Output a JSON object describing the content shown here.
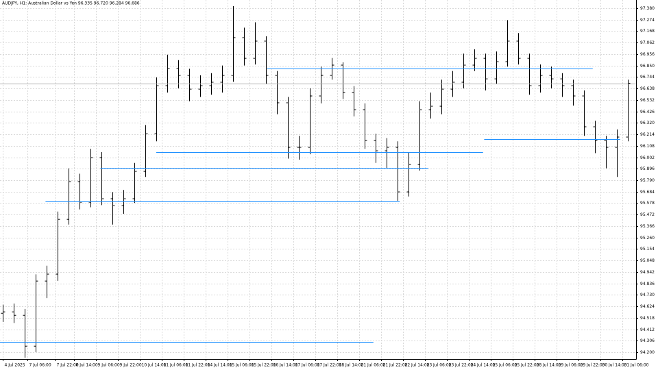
{
  "chart_data": {
    "type": "ohlc",
    "title": "AUDJPY, H1: Australian Dollar vs Yen  96.335 96.720 96.284 96.686",
    "color": "#000000",
    "grid": true,
    "grid_color": "#d9d9d9",
    "open": [
      94.56,
      94.573,
      94.541,
      94.256,
      94.858,
      94.922,
      95.428,
      95.777,
      95.587,
      95.999,
      95.619,
      95.555,
      95.619,
      95.872,
      96.22,
      96.664,
      96.822,
      96.759,
      96.632,
      96.664,
      96.696,
      96.759,
      97.108,
      96.917,
      97.076,
      96.759,
      96.506,
      96.094,
      96.094,
      96.569,
      96.759,
      96.854,
      96.601,
      96.442,
      96.157,
      96.062,
      96.094,
      95.682,
      95.935,
      96.442,
      96.474,
      96.632,
      96.696,
      96.854,
      96.917,
      96.727,
      96.886,
      97.076,
      96.917,
      96.664,
      96.759,
      96.727,
      96.664,
      96.569,
      96.284,
      96.157,
      96.094,
      96.189
    ],
    "high": [
      94.64,
      94.65,
      94.6,
      94.92,
      95.0,
      95.5,
      95.9,
      95.85,
      96.08,
      96.05,
      95.68,
      95.7,
      95.95,
      96.3,
      96.74,
      96.95,
      96.9,
      96.82,
      96.76,
      96.78,
      96.85,
      97.4,
      97.2,
      97.25,
      97.12,
      96.8,
      96.56,
      96.2,
      96.64,
      96.84,
      96.92,
      96.88,
      96.66,
      96.5,
      96.22,
      96.18,
      96.15,
      96.05,
      96.52,
      96.6,
      96.72,
      96.8,
      96.96,
      97.0,
      96.96,
      96.98,
      97.27,
      97.15,
      96.96,
      96.86,
      96.84,
      96.78,
      96.72,
      96.62,
      96.34,
      96.2,
      96.26,
      96.72
    ],
    "low": [
      94.48,
      94.47,
      94.15,
      94.2,
      94.7,
      94.86,
      95.38,
      95.52,
      95.54,
      95.56,
      95.38,
      95.48,
      95.58,
      95.82,
      96.15,
      96.6,
      96.64,
      96.52,
      96.56,
      96.58,
      96.6,
      96.7,
      96.85,
      96.86,
      96.68,
      96.4,
      95.99,
      95.98,
      96.03,
      96.5,
      96.72,
      96.54,
      96.38,
      96.08,
      95.95,
      95.9,
      95.6,
      95.64,
      95.88,
      96.36,
      96.4,
      96.56,
      96.64,
      96.8,
      96.62,
      96.68,
      96.84,
      96.86,
      96.58,
      96.6,
      96.64,
      96.56,
      96.48,
      96.2,
      96.04,
      95.9,
      95.82,
      96.15
    ],
    "close": [
      94.573,
      94.541,
      94.256,
      94.858,
      94.922,
      95.428,
      95.777,
      95.587,
      95.999,
      95.619,
      95.555,
      95.619,
      95.872,
      96.22,
      96.664,
      96.822,
      96.759,
      96.632,
      96.664,
      96.696,
      96.759,
      97.108,
      96.917,
      97.076,
      96.759,
      96.506,
      96.094,
      96.094,
      96.569,
      96.759,
      96.854,
      96.601,
      96.442,
      96.157,
      96.062,
      96.094,
      95.682,
      95.935,
      96.442,
      96.474,
      96.632,
      96.696,
      96.854,
      96.917,
      96.727,
      96.886,
      97.076,
      96.917,
      96.664,
      96.759,
      96.727,
      96.664,
      96.569,
      96.284,
      96.157,
      96.094,
      96.189,
      96.686
    ],
    "price_line_color": "#b0b0b0",
    "ylim": [
      94.137,
      97.456
    ],
    "yticks": [
      {
        "value": 97.38,
        "label": "97.380"
      },
      {
        "value": 97.274,
        "label": "97.274"
      },
      {
        "value": 97.168,
        "label": "97.168"
      },
      {
        "value": 97.062,
        "label": "97.062"
      },
      {
        "value": 96.956,
        "label": "96.956"
      },
      {
        "value": 96.85,
        "label": "96.850"
      },
      {
        "value": 96.744,
        "label": "96.744"
      },
      {
        "value": 96.638,
        "label": "96.638"
      },
      {
        "value": 96.532,
        "label": "96.532"
      },
      {
        "value": 96.426,
        "label": "96.426"
      },
      {
        "value": 96.32,
        "label": "96.320"
      },
      {
        "value": 96.214,
        "label": "96.214"
      },
      {
        "value": 96.108,
        "label": "96.108"
      },
      {
        "value": 96.002,
        "label": "96.002"
      },
      {
        "value": 95.896,
        "label": "95.896"
      },
      {
        "value": 95.79,
        "label": "95.790"
      },
      {
        "value": 95.684,
        "label": "95.684"
      },
      {
        "value": 95.578,
        "label": "95.578"
      },
      {
        "value": 95.472,
        "label": "95.472"
      },
      {
        "value": 95.366,
        "label": "95.366"
      },
      {
        "value": 95.26,
        "label": "95.260"
      },
      {
        "value": 95.154,
        "label": "95.154"
      },
      {
        "value": 95.048,
        "label": "95.048"
      },
      {
        "value": 94.942,
        "label": "94.942"
      },
      {
        "value": 94.836,
        "label": "94.836"
      },
      {
        "value": 94.73,
        "label": "94.730"
      },
      {
        "value": 94.624,
        "label": "94.624"
      },
      {
        "value": 94.518,
        "label": "94.518"
      },
      {
        "value": 94.412,
        "label": "94.412"
      },
      {
        "value": 94.306,
        "label": "94.306"
      },
      {
        "value": 94.2,
        "label": "94.200"
      }
    ],
    "xlim": [
      -0.25,
      57.75
    ],
    "xticks": [
      {
        "value": 0,
        "label": "4 Jul 2025"
      },
      {
        "value": 2.25,
        "label": "7 Jul 06:00"
      },
      {
        "value": 4.75,
        "label": "7 Jul 22:00"
      },
      {
        "value": 6.5,
        "label": "8 Jul 14:00"
      },
      {
        "value": 8.5,
        "label": "9 Jul 06:00"
      },
      {
        "value": 10.5,
        "label": "9 Jul 22:00"
      },
      {
        "value": 12.5,
        "label": "10 Jul 14:00"
      },
      {
        "value": 14.5,
        "label": "11 Jul 06:00"
      },
      {
        "value": 16.5,
        "label": "11 Jul 22:00"
      },
      {
        "value": 18.5,
        "label": "14 Jul 14:00"
      },
      {
        "value": 20.5,
        "label": "15 Jul 06:00"
      },
      {
        "value": 22.5,
        "label": "15 Jul 22:00"
      },
      {
        "value": 24.5,
        "label": "16 Jul 14:00"
      },
      {
        "value": 26.5,
        "label": "17 Jul 06:00"
      },
      {
        "value": 28.5,
        "label": "17 Jul 22:00"
      },
      {
        "value": 30.5,
        "label": "18 Jul 14:00"
      },
      {
        "value": 32.5,
        "label": "21 Jul 06:00"
      },
      {
        "value": 34.5,
        "label": "21 Jul 22:00"
      },
      {
        "value": 36.5,
        "label": "22 Jul 14:00"
      },
      {
        "value": 38.5,
        "label": "23 Jul 06:00"
      },
      {
        "value": 40.5,
        "label": "23 Jul 22:00"
      },
      {
        "value": 42.5,
        "label": "24 Jul 14:00"
      },
      {
        "value": 44.5,
        "label": "25 Jul 06:00"
      },
      {
        "value": 46.5,
        "label": "25 Jul 22:00"
      },
      {
        "value": 48.5,
        "label": "28 Jul 14:00"
      },
      {
        "value": 50.5,
        "label": "29 Jul 06:00"
      },
      {
        "value": 52.5,
        "label": "29 Jul 22:00"
      },
      {
        "value": 54.5,
        "label": "30 Jul 14:00"
      },
      {
        "value": 56.5,
        "label": "31 Jul 06:00"
      }
    ],
    "levels": {
      "color": "#1e90ff",
      "lines": [
        {
          "price": 96.822,
          "from": 24.1,
          "to": 53.8
        },
        {
          "price": 96.17,
          "from": 43.9,
          "to": 56.3
        },
        {
          "price": 96.049,
          "from": 14.0,
          "to": 43.8
        },
        {
          "price": 95.904,
          "from": 8.9,
          "to": 38.8
        },
        {
          "price": 95.593,
          "from": 3.9,
          "to": 36.2
        },
        {
          "price": 94.295,
          "from": -0.25,
          "to": 33.8
        }
      ]
    }
  }
}
